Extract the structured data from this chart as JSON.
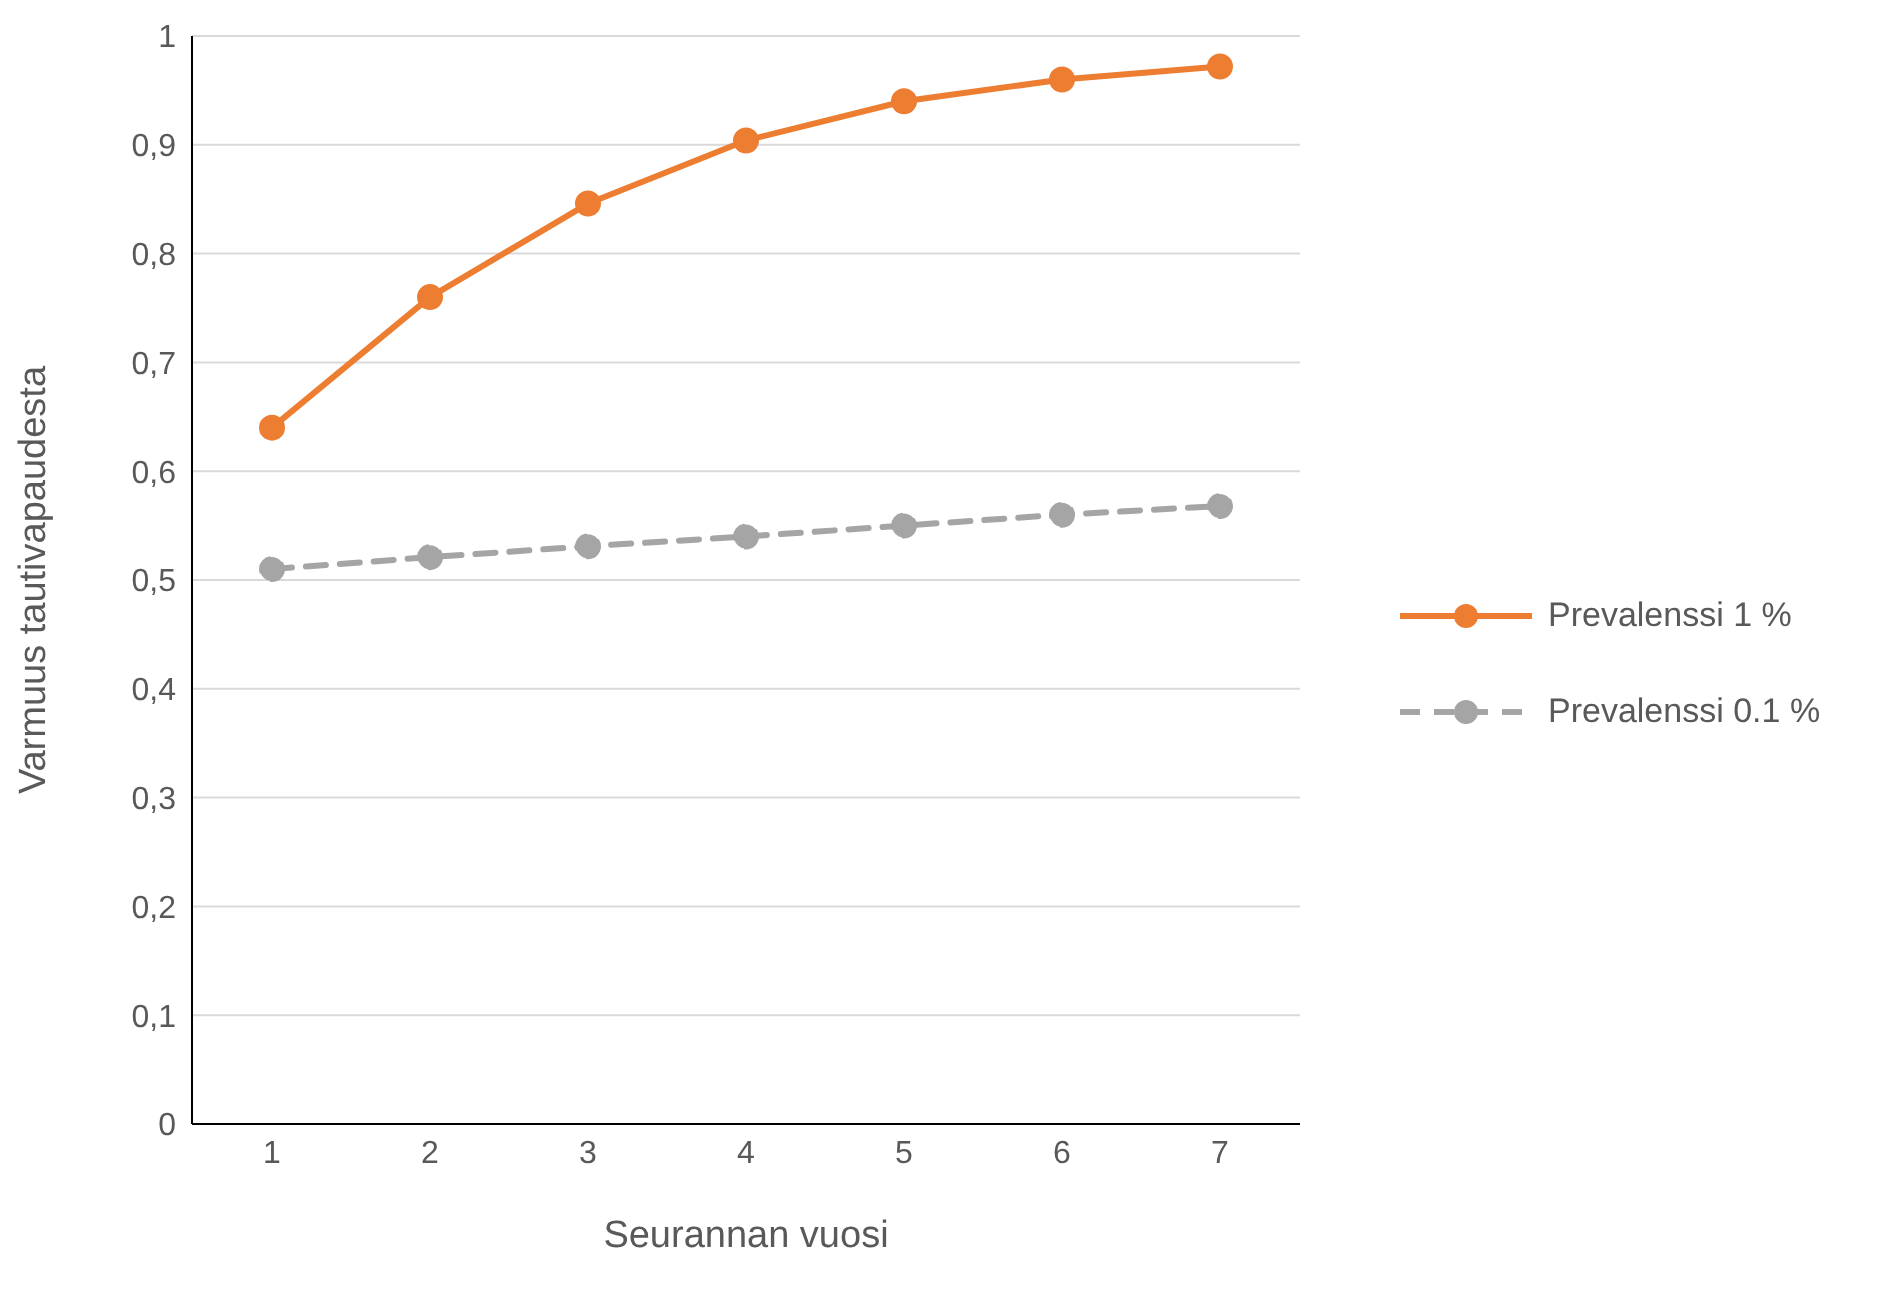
{
  "chart_data": {
    "type": "line",
    "xlabel": "Seurannan vuosi",
    "ylabel": "Varmuus tautivapaudesta",
    "categories": [
      "1",
      "2",
      "3",
      "4",
      "5",
      "6",
      "7"
    ],
    "series": [
      {
        "name": "Prevalenssi 1 %",
        "color": "#ed7d31",
        "line_style": "solid",
        "values": [
          0.64,
          0.76,
          0.846,
          0.904,
          0.94,
          0.96,
          0.972
        ]
      },
      {
        "name": "Prevalenssi 0.1 %",
        "color": "#a5a5a5",
        "line_style": "dashed",
        "values": [
          0.51,
          0.521,
          0.531,
          0.54,
          0.55,
          0.56,
          0.568
        ]
      }
    ],
    "ylim": [
      0,
      1
    ],
    "yticks": [
      0,
      {
        "value": 0.1,
        "label": "0,1"
      },
      {
        "value": 0.2,
        "label": "0,2"
      },
      {
        "value": 0.3,
        "label": "0,3"
      },
      {
        "value": 0.4,
        "label": "0,4"
      },
      {
        "value": 0.5,
        "label": "0,5"
      },
      {
        "value": 0.6,
        "label": "0,6"
      },
      {
        "value": 0.7,
        "label": "0,7"
      },
      {
        "value": 0.8,
        "label": "0,8"
      },
      {
        "value": 0.9,
        "label": "0,9"
      },
      1
    ],
    "grid": "y",
    "legend": "right",
    "marker": "circle"
  }
}
